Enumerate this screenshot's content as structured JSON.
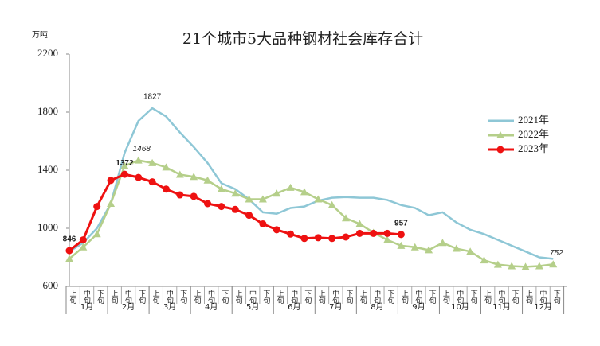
{
  "chart_data": {
    "type": "line",
    "title": "21个城市5大品种钢材社会库存合计",
    "y_unit": "万吨",
    "categories": [
      "上旬",
      "中旬",
      "下旬",
      "上旬",
      "中旬",
      "下旬",
      "上旬",
      "中旬",
      "下旬",
      "上旬",
      "中旬",
      "下旬",
      "上旬",
      "中旬",
      "下旬",
      "上旬",
      "中旬",
      "下旬",
      "上旬",
      "中旬",
      "下旬",
      "上旬",
      "中旬",
      "下旬",
      "上旬",
      "中旬",
      "下旬",
      "上旬",
      "中旬",
      "下旬",
      "上旬",
      "中旬",
      "下旬",
      "上旬",
      "中旬",
      "下旬"
    ],
    "months": [
      "1月",
      "2月",
      "3月",
      "4月",
      "5月",
      "6月",
      "7月",
      "8月",
      "9月",
      "10月",
      "11月",
      "12月"
    ],
    "ylim": [
      600,
      2200
    ],
    "yticks": [
      600,
      1000,
      1400,
      1800,
      2200
    ],
    "series": [
      {
        "name": "2021年",
        "color": "#8ec7d6",
        "marker": "none",
        "values": [
          840,
          900,
          1000,
          1170,
          1520,
          1740,
          1827,
          1770,
          1660,
          1560,
          1450,
          1310,
          1270,
          1200,
          1110,
          1100,
          1140,
          1150,
          1190,
          1210,
          1215,
          1210,
          1210,
          1195,
          1160,
          1140,
          1090,
          1110,
          1040,
          990,
          960,
          920,
          880,
          840,
          800,
          790
        ],
        "value_labels": [
          null,
          null,
          null,
          null,
          null,
          null,
          "1827",
          null,
          null,
          null,
          null,
          null,
          null,
          null,
          null,
          null,
          null,
          null,
          null,
          null,
          null,
          null,
          null,
          null,
          null,
          null,
          null,
          null,
          null,
          null,
          null,
          null,
          null,
          null,
          null,
          null
        ]
      },
      {
        "name": "2022年",
        "color": "#b5cf8a",
        "marker": "triangle",
        "values": [
          790,
          870,
          960,
          1170,
          1430,
          1468,
          1450,
          1420,
          1370,
          1355,
          1330,
          1270,
          1240,
          1200,
          1200,
          1240,
          1280,
          1250,
          1200,
          1160,
          1070,
          1030,
          970,
          920,
          880,
          870,
          850,
          900,
          860,
          840,
          780,
          750,
          740,
          735,
          740,
          752
        ],
        "value_labels": [
          null,
          null,
          null,
          null,
          null,
          "1468",
          null,
          null,
          null,
          null,
          null,
          null,
          null,
          null,
          null,
          null,
          null,
          null,
          null,
          null,
          null,
          null,
          null,
          null,
          null,
          null,
          null,
          null,
          null,
          null,
          null,
          null,
          null,
          null,
          null,
          "752"
        ]
      },
      {
        "name": "2023年",
        "color": "#ee1111",
        "marker": "circle",
        "values": [
          846,
          920,
          1150,
          1330,
          1372,
          1350,
          1320,
          1270,
          1230,
          1220,
          1170,
          1150,
          1130,
          1090,
          1030,
          990,
          960,
          930,
          935,
          930,
          940,
          965,
          965,
          965,
          957,
          null,
          null,
          null,
          null,
          null,
          null,
          null,
          null,
          null,
          null,
          null
        ],
        "value_labels": [
          "846",
          null,
          null,
          null,
          "1372",
          null,
          null,
          null,
          null,
          null,
          null,
          null,
          null,
          null,
          null,
          null,
          null,
          null,
          null,
          null,
          null,
          null,
          null,
          null,
          "957",
          null,
          null,
          null,
          null,
          null,
          null,
          null,
          null,
          null,
          null,
          null
        ]
      }
    ]
  }
}
